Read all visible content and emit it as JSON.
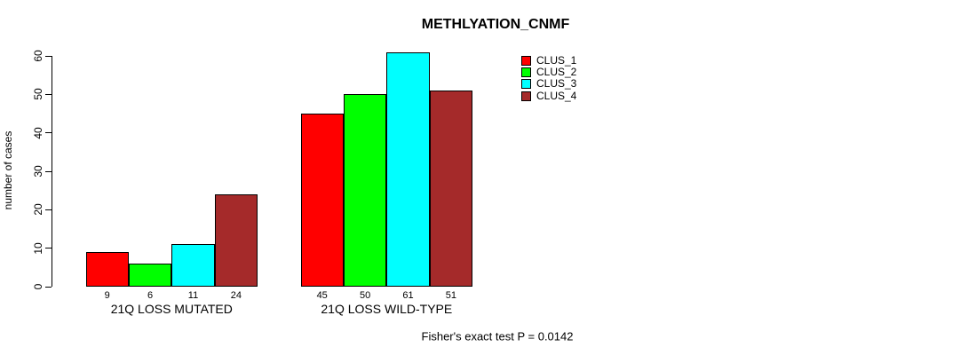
{
  "chart_data": {
    "type": "bar",
    "title": "METHLYATION_CNMF",
    "ylabel": "number of cases",
    "xlabel": "",
    "categories": [
      "21Q LOSS MUTATED",
      "21Q LOSS WILD-TYPE"
    ],
    "series": [
      {
        "name": "CLUS_1",
        "color": "#ff0000",
        "values": [
          9,
          45
        ]
      },
      {
        "name": "CLUS_2",
        "color": "#00ff00",
        "values": [
          6,
          50
        ]
      },
      {
        "name": "CLUS_3",
        "color": "#00ffff",
        "values": [
          11,
          61
        ]
      },
      {
        "name": "CLUS_4",
        "color": "#a52a2a",
        "values": [
          24,
          51
        ]
      }
    ],
    "yticks": [
      0,
      10,
      20,
      30,
      40,
      50,
      60
    ],
    "ylim": [
      0,
      63
    ],
    "grid": false,
    "legend_position": "top-right",
    "legend_entries": [
      "CLUS_1",
      "CLUS_2",
      "CLUS_3",
      "CLUS_4"
    ],
    "bar_value_labels_shown": true,
    "annotation": "Fisher's exact test P = 0.0142"
  }
}
